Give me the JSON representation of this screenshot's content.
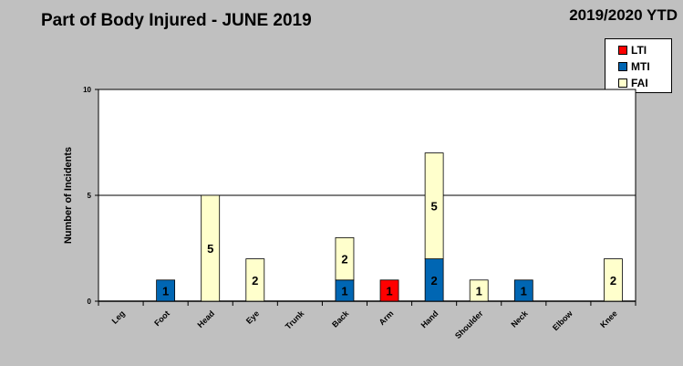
{
  "header": {
    "title": "Part of Body Injured - JUNE 2019",
    "period": "2019/2020 YTD"
  },
  "chart_data": {
    "type": "bar",
    "stacked": true,
    "title": "Part of Body Injured - JUNE 2019",
    "xlabel": "",
    "ylabel": "Number of Incidents",
    "ylim": [
      0,
      10
    ],
    "yticks": [
      0,
      5,
      10
    ],
    "categories": [
      "Leg",
      "Foot",
      "Head",
      "Eye",
      "Trunk",
      "Back",
      "Arm",
      "Hand",
      "Shoulder",
      "Neck",
      "Elbow",
      "Knee"
    ],
    "series": [
      {
        "name": "LTI",
        "color": "#ff0000",
        "values": [
          0,
          0,
          0,
          0,
          0,
          0,
          1,
          0,
          0,
          0,
          0,
          0
        ]
      },
      {
        "name": "MTI",
        "color": "#0066b3",
        "values": [
          0,
          1,
          0,
          0,
          0,
          1,
          0,
          2,
          0,
          1,
          0,
          0
        ]
      },
      {
        "name": "FAI",
        "color": "#ffffcc",
        "values": [
          0,
          0,
          5,
          2,
          0,
          2,
          0,
          5,
          1,
          0,
          0,
          2
        ]
      }
    ],
    "gridlines": [
      5
    ],
    "legend_position": "top-right"
  }
}
